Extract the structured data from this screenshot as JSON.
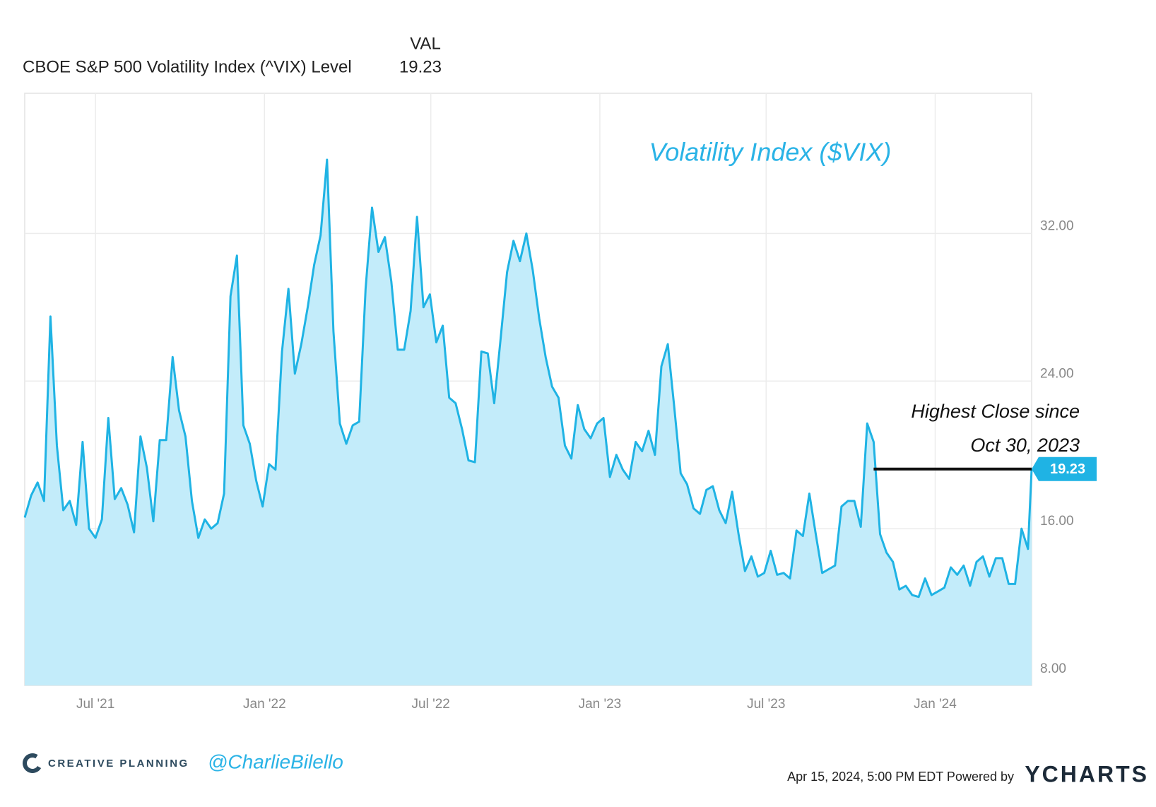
{
  "chart_data": {
    "type": "area",
    "title": "Volatility Index ($VIX)",
    "header_column": "VAL",
    "series": [
      {
        "name": "CBOE S&P 500 Volatility Index (^VIX) Level",
        "color": "#1fb3e4",
        "fill": "#c3ecfa",
        "x": [
          "2021-04-15",
          "2021-04-22",
          "2021-04-29",
          "2021-05-06",
          "2021-05-13",
          "2021-05-20",
          "2021-05-27",
          "2021-06-03",
          "2021-06-10",
          "2021-06-17",
          "2021-06-24",
          "2021-07-01",
          "2021-07-08",
          "2021-07-15",
          "2021-07-22",
          "2021-07-29",
          "2021-08-05",
          "2021-08-12",
          "2021-08-19",
          "2021-08-26",
          "2021-09-02",
          "2021-09-09",
          "2021-09-16",
          "2021-09-23",
          "2021-09-30",
          "2021-10-07",
          "2021-10-14",
          "2021-10-21",
          "2021-10-28",
          "2021-11-04",
          "2021-11-11",
          "2021-11-18",
          "2021-11-25",
          "2021-12-02",
          "2021-12-09",
          "2021-12-16",
          "2021-12-23",
          "2021-12-30",
          "2022-01-06",
          "2022-01-13",
          "2022-01-20",
          "2022-01-27",
          "2022-02-03",
          "2022-02-10",
          "2022-02-17",
          "2022-02-24",
          "2022-03-03",
          "2022-03-10",
          "2022-03-17",
          "2022-03-24",
          "2022-03-31",
          "2022-04-07",
          "2022-04-14",
          "2022-04-21",
          "2022-04-28",
          "2022-05-05",
          "2022-05-12",
          "2022-05-19",
          "2022-05-26",
          "2022-06-02",
          "2022-06-09",
          "2022-06-16",
          "2022-06-23",
          "2022-06-30",
          "2022-07-07",
          "2022-07-14",
          "2022-07-21",
          "2022-07-28",
          "2022-08-04",
          "2022-08-11",
          "2022-08-18",
          "2022-08-25",
          "2022-09-01",
          "2022-09-08",
          "2022-09-15",
          "2022-09-22",
          "2022-09-29",
          "2022-10-06",
          "2022-10-13",
          "2022-10-20",
          "2022-10-27",
          "2022-11-03",
          "2022-11-10",
          "2022-11-17",
          "2022-11-24",
          "2022-12-01",
          "2022-12-08",
          "2022-12-15",
          "2022-12-22",
          "2022-12-29",
          "2023-01-05",
          "2023-01-12",
          "2023-01-19",
          "2023-01-26",
          "2023-02-02",
          "2023-02-09",
          "2023-02-16",
          "2023-02-23",
          "2023-03-02",
          "2023-03-09",
          "2023-03-16",
          "2023-03-23",
          "2023-03-30",
          "2023-04-06",
          "2023-04-13",
          "2023-04-20",
          "2023-04-27",
          "2023-05-04",
          "2023-05-11",
          "2023-05-18",
          "2023-05-25",
          "2023-06-01",
          "2023-06-08",
          "2023-06-15",
          "2023-06-22",
          "2023-06-29",
          "2023-07-06",
          "2023-07-13",
          "2023-07-20",
          "2023-07-27",
          "2023-08-03",
          "2023-08-10",
          "2023-08-17",
          "2023-08-24",
          "2023-08-31",
          "2023-09-07",
          "2023-09-14",
          "2023-09-21",
          "2023-09-28",
          "2023-10-05",
          "2023-10-12",
          "2023-10-19",
          "2023-10-26",
          "2023-11-02",
          "2023-11-09",
          "2023-11-16",
          "2023-11-23",
          "2023-11-30",
          "2023-12-07",
          "2023-12-14",
          "2023-12-21",
          "2023-12-28",
          "2024-01-04",
          "2024-01-11",
          "2024-01-18",
          "2024-01-25",
          "2024-02-01",
          "2024-02-08",
          "2024-02-15",
          "2024-02-22",
          "2024-02-29",
          "2024-03-07",
          "2024-03-14",
          "2024-03-21",
          "2024-03-28",
          "2024-04-04",
          "2024-04-11",
          "2024-04-15"
        ],
        "values": [
          16.6,
          17.8,
          18.5,
          17.5,
          27.5,
          20.5,
          17.0,
          17.5,
          16.2,
          20.7,
          16.0,
          15.5,
          16.5,
          22.0,
          17.6,
          18.2,
          17.3,
          15.8,
          21.0,
          19.3,
          16.4,
          20.8,
          20.8,
          25.3,
          22.4,
          21.0,
          17.5,
          15.5,
          16.5,
          16.0,
          16.3,
          17.9,
          28.6,
          30.8,
          21.6,
          20.6,
          18.6,
          17.2,
          19.5,
          19.2,
          25.6,
          29.0,
          24.4,
          26.0,
          28.0,
          30.3,
          31.9,
          36.0,
          26.7,
          21.7,
          20.6,
          21.6,
          21.8,
          29.0,
          33.4,
          31.0,
          31.8,
          29.4,
          25.7,
          25.7,
          27.8,
          32.9,
          28.0,
          28.7,
          26.1,
          27.0,
          23.1,
          22.8,
          21.4,
          19.7,
          19.6,
          25.6,
          25.5,
          22.8,
          26.3,
          29.9,
          31.6,
          30.5,
          32.0,
          30.0,
          27.4,
          25.3,
          23.7,
          23.1,
          20.5,
          19.8,
          22.7,
          21.4,
          20.9,
          21.7,
          22.0,
          18.8,
          20.0,
          19.2,
          18.7,
          20.7,
          20.2,
          21.3,
          20.0,
          24.8,
          26.0,
          22.6,
          19.0,
          18.4,
          17.1,
          16.8,
          18.1,
          18.3,
          17.0,
          16.3,
          18.0,
          15.7,
          13.7,
          14.5,
          13.4,
          13.6,
          14.8,
          13.5,
          13.6,
          13.3,
          15.9,
          15.6,
          17.9,
          15.7,
          13.6,
          13.8,
          14.0,
          17.2,
          17.5,
          17.5,
          16.1,
          21.7,
          20.7,
          15.7,
          14.7,
          14.2,
          12.7,
          12.9,
          12.4,
          12.3,
          13.3,
          12.4,
          12.6,
          12.8,
          13.9,
          13.5,
          14.0,
          12.9,
          14.2,
          14.5,
          13.4,
          14.4,
          14.4,
          13.0,
          13.0,
          16.0,
          14.9,
          19.23
        ]
      }
    ],
    "xlim": [
      "2021-04-15",
      "2024-04-15"
    ],
    "xticks": [
      {
        "value": "2021-07-01",
        "label": "Jul '21"
      },
      {
        "value": "2022-01-01",
        "label": "Jan '22"
      },
      {
        "value": "2022-07-01",
        "label": "Jul '22"
      },
      {
        "value": "2023-01-01",
        "label": "Jan '23"
      },
      {
        "value": "2023-07-01",
        "label": "Jul '23"
      },
      {
        "value": "2024-01-01",
        "label": "Jan '24"
      }
    ],
    "ylim": [
      7.5,
      39.6
    ],
    "yticks": [
      {
        "value": 8,
        "label": "8.00"
      },
      {
        "value": 16,
        "label": "16.00"
      },
      {
        "value": 24,
        "label": "24.00"
      },
      {
        "value": 32,
        "label": "32.00"
      }
    ],
    "grid": true,
    "annotation": [
      "Highest Close since",
      "Oct 30, 2023"
    ],
    "footer": {
      "brand": "CREATIVE PLANNING",
      "handle": "@CharlieBilello",
      "timestamp": "Apr 15, 2024, 5:00 PM EDT Powered by",
      "provider": "YCHARTS"
    }
  }
}
